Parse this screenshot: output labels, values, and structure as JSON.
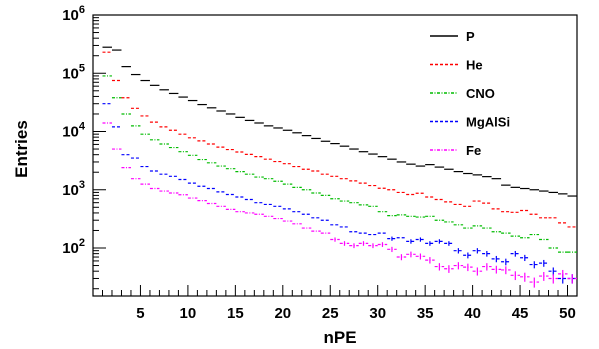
{
  "chart_data": {
    "type": "line",
    "style": "step-histogram",
    "xlabel": "nPE",
    "ylabel": "Entries",
    "xlim": [
      0,
      51
    ],
    "ylim": [
      15,
      1000000
    ],
    "yscale": "log",
    "x_ticks": [
      5,
      10,
      15,
      20,
      25,
      30,
      35,
      40,
      45,
      50
    ],
    "y_ticks": [
      {
        "base": "10",
        "exp": "2",
        "value": 100
      },
      {
        "base": "10",
        "exp": "3",
        "value": 1000
      },
      {
        "base": "10",
        "exp": "4",
        "value": 10000
      },
      {
        "base": "10",
        "exp": "5",
        "value": 100000
      },
      {
        "base": "10",
        "exp": "6",
        "value": 1000000
      }
    ],
    "grid": false,
    "legend_position": "top-right",
    "x": [
      1.5,
      2.5,
      3.5,
      4.5,
      5.5,
      6.5,
      7.5,
      8.5,
      9.5,
      10.5,
      11.5,
      12.5,
      13.5,
      14.5,
      15.5,
      16.5,
      17.5,
      18.5,
      19.5,
      20.5,
      21.5,
      22.5,
      23.5,
      24.5,
      25.5,
      26.5,
      27.5,
      28.5,
      29.5,
      30.5,
      31.5,
      32.5,
      33.5,
      34.5,
      35.5,
      36.5,
      37.5,
      38.5,
      39.5,
      40.5,
      41.5,
      42.5,
      43.5,
      44.5,
      45.5,
      46.5,
      47.5,
      48.5,
      49.5,
      50.5
    ],
    "series": [
      {
        "name": "P",
        "color": "#000000",
        "dash": "solid",
        "values": [
          280000,
          250000,
          130000,
          95000,
          75000,
          62000,
          52000,
          45000,
          39000,
          34000,
          29000,
          25500,
          22500,
          20000,
          17500,
          15500,
          14000,
          12500,
          11500,
          10500,
          9500,
          8500,
          7600,
          6800,
          6200,
          5600,
          5000,
          4500,
          4100,
          3700,
          3350,
          3000,
          2750,
          2550,
          2700,
          2450,
          2250,
          2050,
          1900,
          1800,
          1680,
          1550,
          1200,
          1100,
          1050,
          1000,
          950,
          900,
          850,
          780
        ]
      },
      {
        "name": "He",
        "color": "#ff0000",
        "dash": "dashed",
        "values": [
          230000,
          75000,
          38000,
          25000,
          18500,
          14500,
          12000,
          10500,
          9000,
          7800,
          6900,
          6100,
          5400,
          4900,
          4450,
          4050,
          3700,
          3350,
          3050,
          2800,
          2500,
          2250,
          2100,
          1850,
          1700,
          1550,
          1420,
          1300,
          1180,
          1060,
          1000,
          900,
          830,
          870,
          750,
          680,
          620,
          560,
          520,
          640,
          590,
          470,
          420,
          410,
          440,
          380,
          330,
          330,
          270,
          230
        ]
      },
      {
        "name": "CNO",
        "color": "#00bb00",
        "dash": "dotdash",
        "values": [
          90000,
          38000,
          20000,
          12500,
          9000,
          7200,
          6100,
          5300,
          4500,
          3900,
          3300,
          2900,
          2550,
          2300,
          2050,
          1850,
          1650,
          1550,
          1400,
          1250,
          1100,
          1000,
          880,
          800,
          700,
          640,
          600,
          550,
          520,
          420,
          360,
          370,
          350,
          340,
          350,
          300,
          280,
          250,
          220,
          240,
          220,
          190,
          180,
          160,
          150,
          170,
          140,
          100,
          85,
          85
        ]
      },
      {
        "name": "MgAlSi",
        "color": "#0000ff",
        "dash": "dashed",
        "values": [
          30000,
          12000,
          4000,
          3500,
          2500,
          2100,
          1850,
          1700,
          1500,
          1300,
          1150,
          1050,
          920,
          830,
          750,
          680,
          600,
          560,
          520,
          470,
          420,
          380,
          330,
          300,
          250,
          230,
          190,
          180,
          170,
          180,
          145,
          150,
          130,
          140,
          120,
          130,
          120,
          90,
          75,
          90,
          80,
          65,
          58,
          80,
          68,
          52,
          55,
          40,
          30,
          30
        ]
      },
      {
        "name": "Fe",
        "color": "#ff00ff",
        "dash": "dotdash",
        "values": [
          14000,
          5000,
          2400,
          1550,
          1250,
          1050,
          950,
          880,
          820,
          720,
          650,
          580,
          520,
          460,
          420,
          400,
          380,
          350,
          320,
          290,
          260,
          220,
          195,
          180,
          140,
          120,
          110,
          120,
          110,
          115,
          95,
          70,
          78,
          72,
          62,
          48,
          44,
          50,
          47,
          40,
          48,
          43,
          42,
          34,
          32,
          26,
          33,
          30,
          36,
          30
        ]
      }
    ]
  }
}
